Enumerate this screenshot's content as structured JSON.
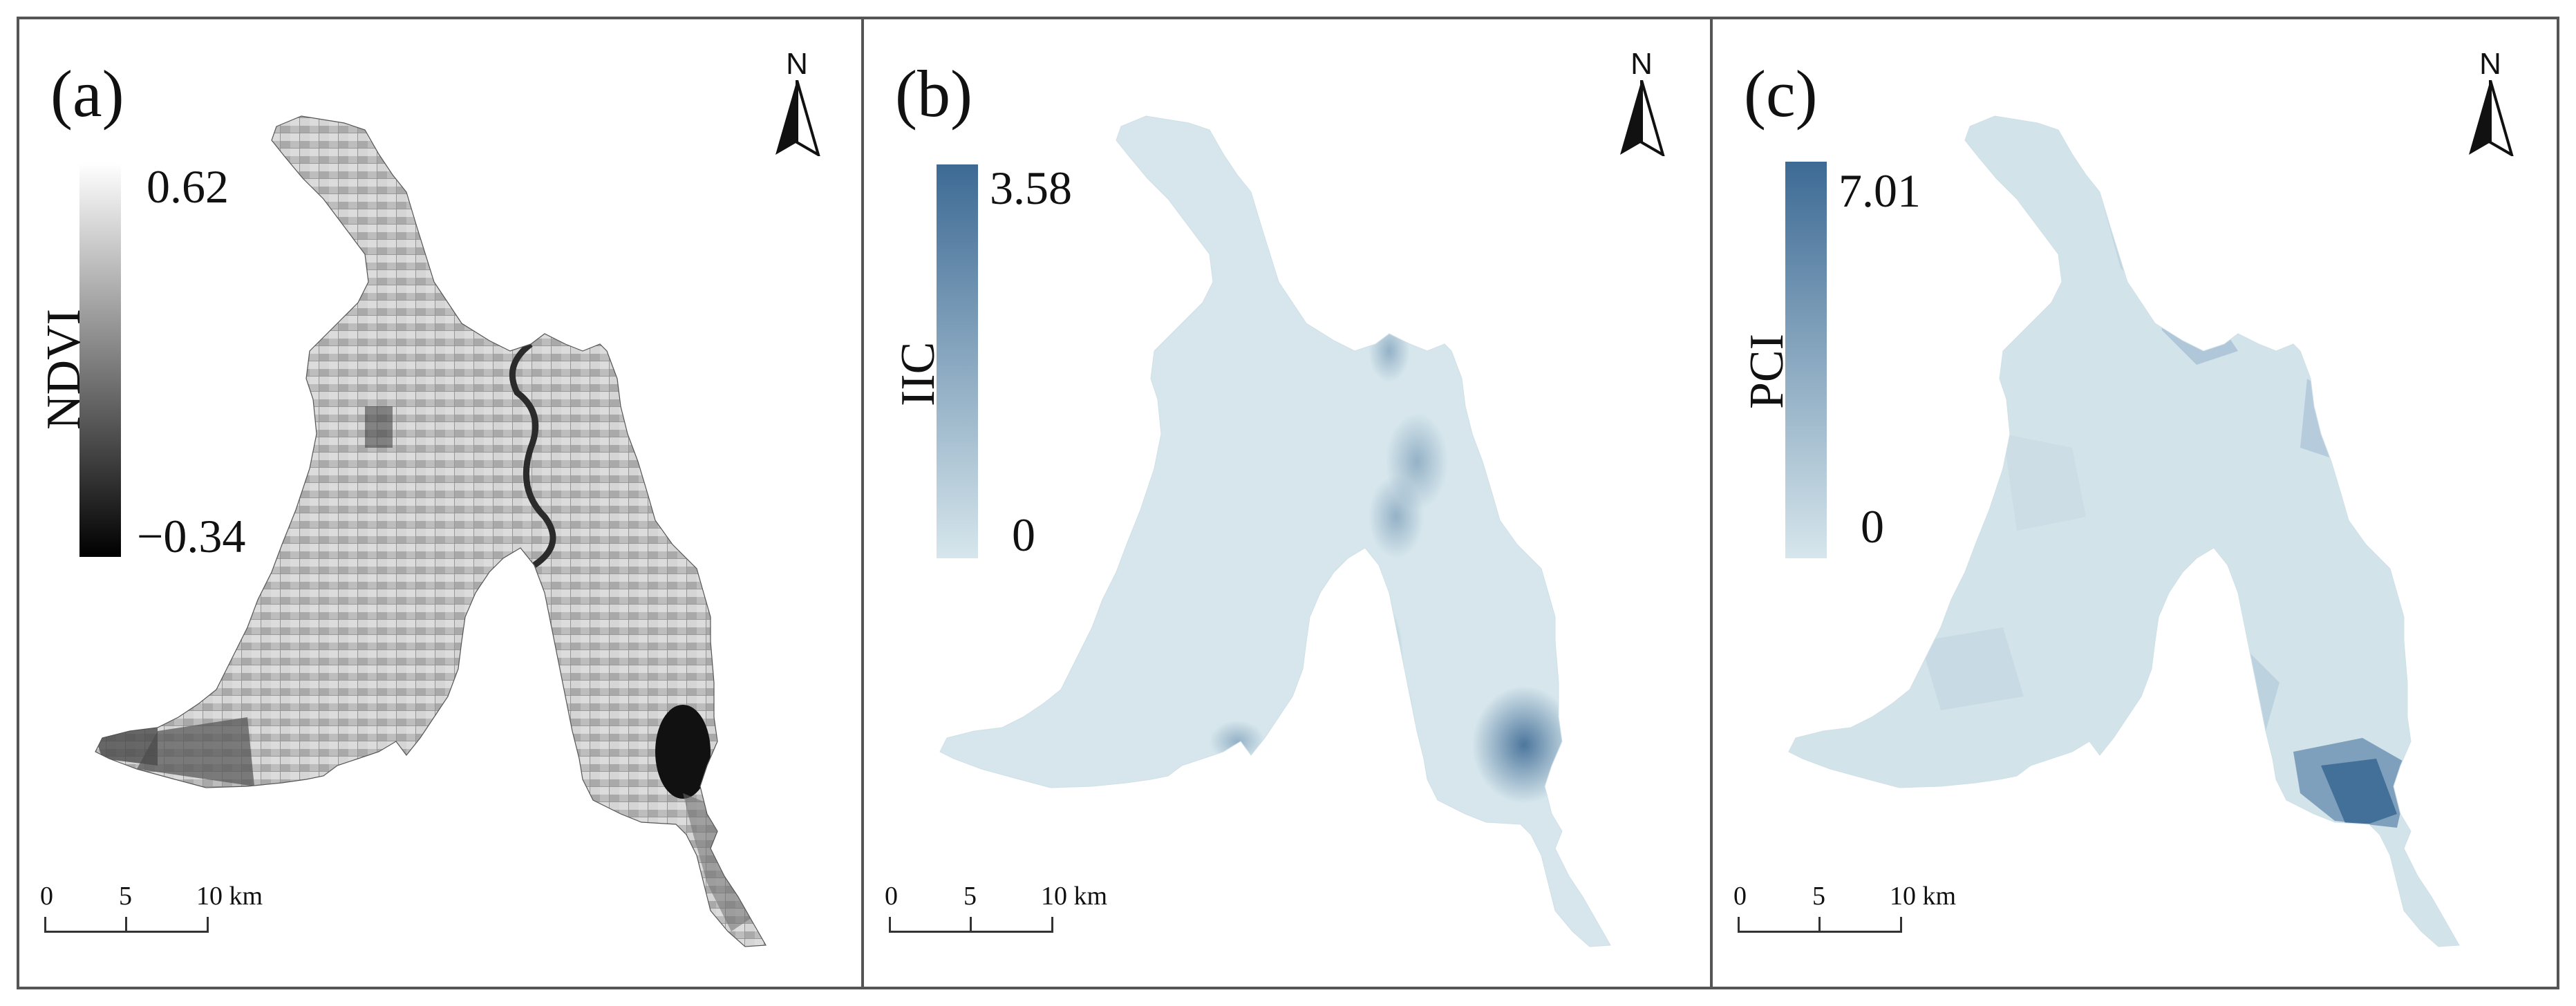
{
  "panels": [
    {
      "id": "a",
      "label": "(a)",
      "legend": {
        "title": "NDVI",
        "max": "0.62",
        "min": "−0.34",
        "colors": [
          "#ffffff",
          "#000000"
        ]
      },
      "north": "N",
      "scale": {
        "ticks": [
          "0",
          "5",
          "10 km"
        ]
      }
    },
    {
      "id": "b",
      "label": "(b)",
      "legend": {
        "title": "IIC",
        "max": "3.58",
        "min": "0",
        "colors": [
          "#d6e6ec",
          "#3d6a94"
        ]
      },
      "north": "N",
      "scale": {
        "ticks": [
          "0",
          "5",
          "10 km"
        ]
      }
    },
    {
      "id": "c",
      "label": "(c)",
      "legend": {
        "title": "PCI",
        "max": "7.01",
        "min": "0",
        "colors": [
          "#d6e6ec",
          "#3d6a94"
        ]
      },
      "north": "N",
      "scale": {
        "ticks": [
          "0",
          "5",
          "10 km"
        ]
      }
    }
  ]
}
